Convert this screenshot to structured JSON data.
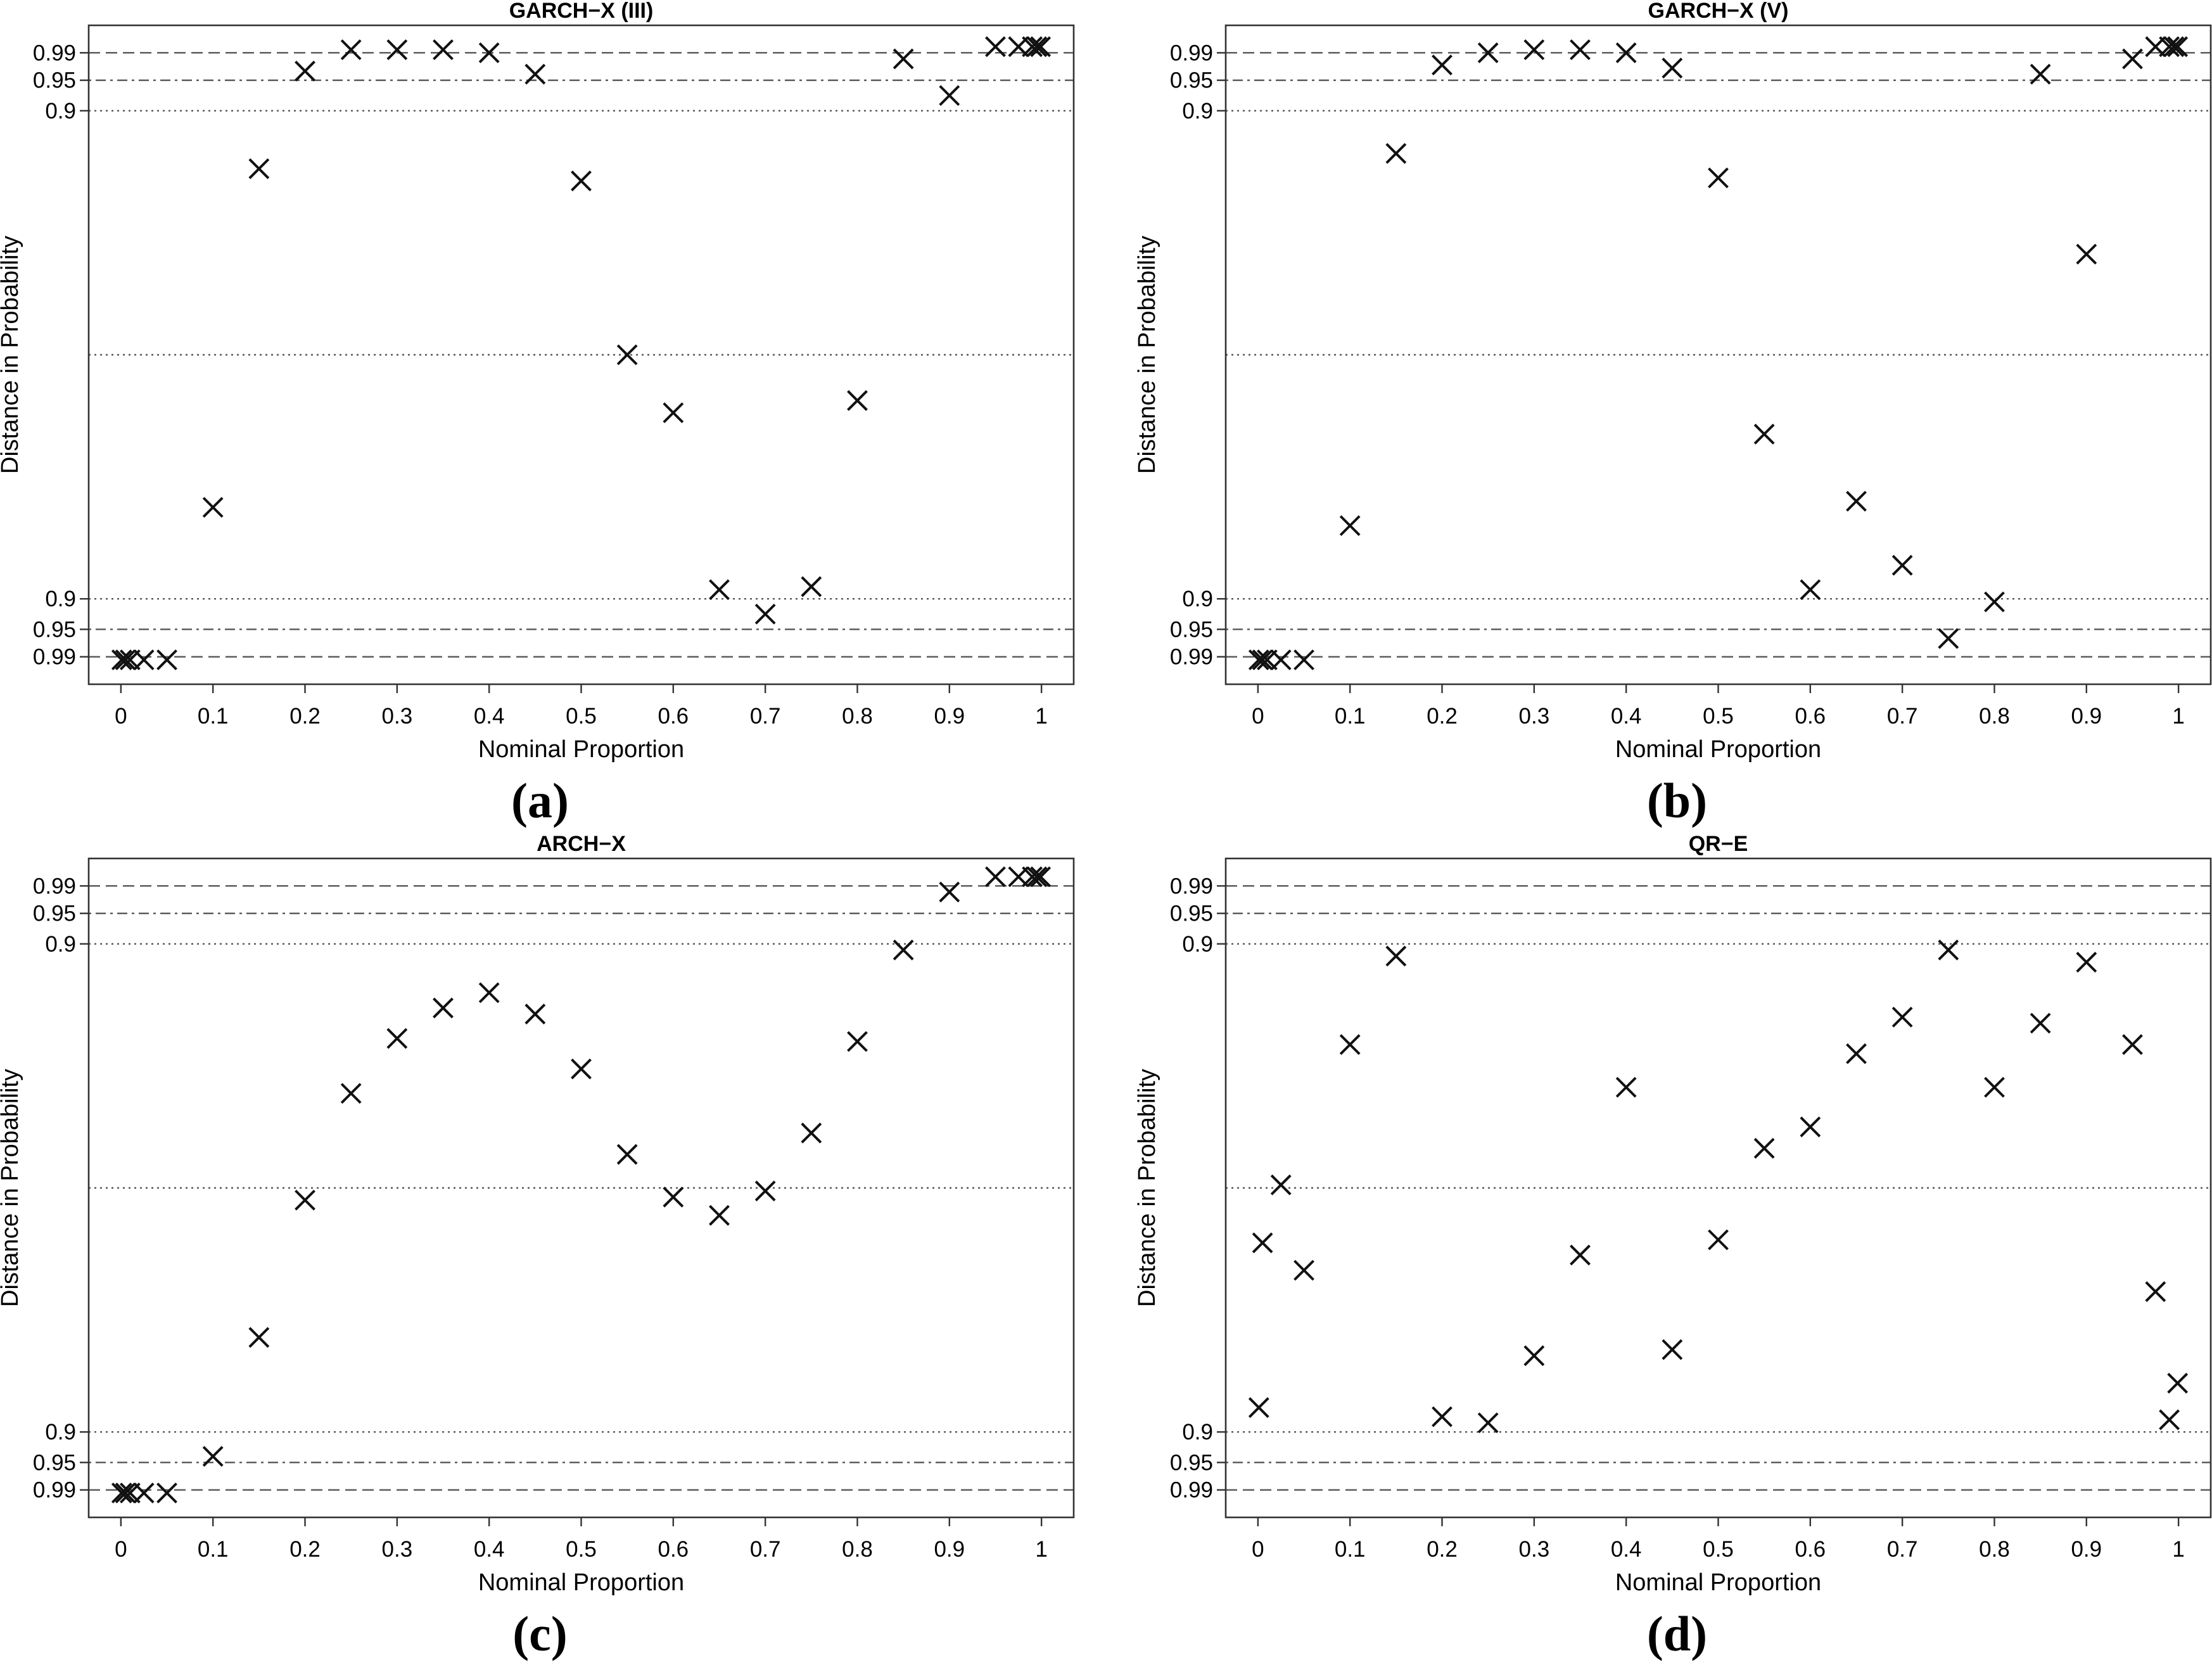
{
  "chart_data": [
    {
      "type": "scatter",
      "title": "GARCH−X (III)",
      "panel_label": "(a)",
      "xlabel": "Nominal Proportion",
      "ylabel": "Distance in Probability",
      "xlim": [
        -0.035,
        1.035
      ],
      "ylim": [
        -1.08,
        1.08
      ],
      "x_ticks": [
        "0",
        "0.1",
        "0.2",
        "0.3",
        "0.4",
        "0.5",
        "0.6",
        "0.7",
        "0.8",
        "0.9",
        "1"
      ],
      "y_ticks": [
        "0.99",
        "0.95",
        "0.9",
        "0.9",
        "0.95",
        "0.99"
      ],
      "reference_lines": [
        {
          "label": "0.99",
          "y": 0.99,
          "style": "dashed"
        },
        {
          "label": "0.95",
          "y": 0.9,
          "style": "dotdash"
        },
        {
          "label": "0.9",
          "y": 0.8,
          "style": "dotted"
        },
        {
          "label": "",
          "y": 0.0,
          "style": "dotted"
        },
        {
          "label": "0.9",
          "y": -0.8,
          "style": "dotted"
        },
        {
          "label": "0.95",
          "y": -0.9,
          "style": "dotdash"
        },
        {
          "label": "0.99",
          "y": -0.99,
          "style": "dashed"
        }
      ],
      "x": [
        0.001,
        0.005,
        0.01,
        0.025,
        0.05,
        0.1,
        0.15,
        0.2,
        0.25,
        0.3,
        0.35,
        0.4,
        0.45,
        0.5,
        0.55,
        0.6,
        0.65,
        0.7,
        0.75,
        0.8,
        0.85,
        0.9,
        0.95,
        0.975,
        0.99,
        0.995,
        0.999
      ],
      "y": [
        -1.0,
        -1.0,
        -1.0,
        -1.0,
        -1.0,
        -0.5,
        0.61,
        0.93,
        1.0,
        1.0,
        1.0,
        0.99,
        0.92,
        0.57,
        0.0,
        -0.19,
        -0.77,
        -0.85,
        -0.76,
        -0.15,
        0.97,
        0.85,
        1.01,
        1.01,
        1.01,
        1.01,
        1.01
      ]
    },
    {
      "type": "scatter",
      "title": "GARCH−X (V)",
      "panel_label": "(b)",
      "xlabel": "Nominal Proportion",
      "ylabel": "Distance in Probability",
      "xlim": [
        -0.035,
        1.035
      ],
      "ylim": [
        -1.08,
        1.08
      ],
      "x_ticks": [
        "0",
        "0.1",
        "0.2",
        "0.3",
        "0.4",
        "0.5",
        "0.6",
        "0.7",
        "0.8",
        "0.9",
        "1"
      ],
      "y_ticks": [
        "0.99",
        "0.95",
        "0.9",
        "0.9",
        "0.95",
        "0.99"
      ],
      "reference_lines": [
        {
          "label": "0.99",
          "y": 0.99,
          "style": "dashed"
        },
        {
          "label": "0.95",
          "y": 0.9,
          "style": "dotdash"
        },
        {
          "label": "0.9",
          "y": 0.8,
          "style": "dotted"
        },
        {
          "label": "",
          "y": 0.0,
          "style": "dotted"
        },
        {
          "label": "0.9",
          "y": -0.8,
          "style": "dotted"
        },
        {
          "label": "0.95",
          "y": -0.9,
          "style": "dotdash"
        },
        {
          "label": "0.99",
          "y": -0.99,
          "style": "dashed"
        }
      ],
      "x": [
        0.001,
        0.005,
        0.01,
        0.025,
        0.05,
        0.1,
        0.15,
        0.2,
        0.25,
        0.3,
        0.35,
        0.4,
        0.45,
        0.5,
        0.55,
        0.6,
        0.65,
        0.7,
        0.75,
        0.8,
        0.85,
        0.9,
        0.95,
        0.975,
        0.99,
        0.995,
        0.999
      ],
      "y": [
        -1.0,
        -1.0,
        -1.0,
        -1.0,
        -1.0,
        -0.56,
        0.66,
        0.95,
        0.99,
        1.0,
        1.0,
        0.99,
        0.94,
        0.58,
        -0.26,
        -0.77,
        -0.48,
        -0.69,
        -0.93,
        -0.81,
        0.92,
        0.33,
        0.97,
        1.01,
        1.01,
        1.01,
        1.01
      ]
    },
    {
      "type": "scatter",
      "title": "ARCH−X",
      "panel_label": "(c)",
      "xlabel": "Nominal Proportion",
      "ylabel": "Distance in Probability",
      "xlim": [
        -0.035,
        1.035
      ],
      "ylim": [
        -1.08,
        1.08
      ],
      "x_ticks": [
        "0",
        "0.1",
        "0.2",
        "0.3",
        "0.4",
        "0.5",
        "0.6",
        "0.7",
        "0.8",
        "0.9",
        "1"
      ],
      "y_ticks": [
        "0.99",
        "0.95",
        "0.9",
        "0.9",
        "0.95",
        "0.99"
      ],
      "reference_lines": [
        {
          "label": "0.99",
          "y": 0.99,
          "style": "dashed"
        },
        {
          "label": "0.95",
          "y": 0.9,
          "style": "dotdash"
        },
        {
          "label": "0.9",
          "y": 0.8,
          "style": "dotted"
        },
        {
          "label": "",
          "y": 0.0,
          "style": "dotted"
        },
        {
          "label": "0.9",
          "y": -0.8,
          "style": "dotted"
        },
        {
          "label": "0.95",
          "y": -0.9,
          "style": "dotdash"
        },
        {
          "label": "0.99",
          "y": -0.99,
          "style": "dashed"
        }
      ],
      "x": [
        0.001,
        0.005,
        0.01,
        0.025,
        0.05,
        0.1,
        0.15,
        0.2,
        0.25,
        0.3,
        0.35,
        0.4,
        0.45,
        0.5,
        0.55,
        0.6,
        0.65,
        0.7,
        0.75,
        0.8,
        0.85,
        0.9,
        0.95,
        0.975,
        0.99,
        0.995,
        0.999
      ],
      "y": [
        -1.0,
        -1.0,
        -1.0,
        -1.0,
        -1.0,
        -0.88,
        -0.49,
        -0.04,
        0.31,
        0.49,
        0.59,
        0.64,
        0.57,
        0.39,
        0.11,
        -0.03,
        -0.09,
        -0.01,
        0.18,
        0.48,
        0.78,
        0.97,
        1.02,
        1.02,
        1.02,
        1.02,
        1.02
      ]
    },
    {
      "type": "scatter",
      "title": "QR−E",
      "panel_label": "(d)",
      "xlabel": "Nominal Proportion",
      "ylabel": "Distance in Probability",
      "xlim": [
        -0.035,
        1.035
      ],
      "ylim": [
        -1.08,
        1.08
      ],
      "x_ticks": [
        "0",
        "0.1",
        "0.2",
        "0.3",
        "0.4",
        "0.5",
        "0.6",
        "0.7",
        "0.8",
        "0.9",
        "1"
      ],
      "y_ticks": [
        "0.99",
        "0.95",
        "0.9",
        "0.9",
        "0.95",
        "0.99"
      ],
      "reference_lines": [
        {
          "label": "0.99",
          "y": 0.99,
          "style": "dashed"
        },
        {
          "label": "0.95",
          "y": 0.9,
          "style": "dotdash"
        },
        {
          "label": "0.9",
          "y": 0.8,
          "style": "dotted"
        },
        {
          "label": "",
          "y": 0.0,
          "style": "dotted"
        },
        {
          "label": "0.9",
          "y": -0.8,
          "style": "dotted"
        },
        {
          "label": "0.95",
          "y": -0.9,
          "style": "dotdash"
        },
        {
          "label": "0.99",
          "y": -0.99,
          "style": "dashed"
        }
      ],
      "x": [
        0.001,
        0.005,
        0.025,
        0.05,
        0.1,
        0.15,
        0.2,
        0.25,
        0.3,
        0.35,
        0.4,
        0.45,
        0.5,
        0.55,
        0.6,
        0.65,
        0.7,
        0.75,
        0.8,
        0.85,
        0.9,
        0.95,
        0.975,
        0.99,
        0.999
      ],
      "y": [
        -0.72,
        -0.18,
        0.01,
        -0.27,
        0.47,
        0.76,
        -0.75,
        -0.77,
        -0.55,
        -0.22,
        0.33,
        -0.53,
        -0.17,
        0.13,
        0.2,
        0.44,
        0.56,
        0.78,
        0.33,
        0.54,
        0.74,
        0.47,
        -0.34,
        -0.76,
        -0.64
      ]
    }
  ]
}
